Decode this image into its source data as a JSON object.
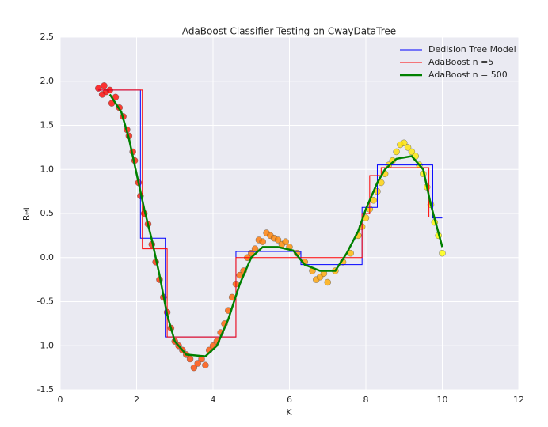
{
  "chart_data": {
    "type": "line",
    "title": "AdaBoost Classifier Testing on CwayDataTree",
    "x_label": "K",
    "y_label": "Ret",
    "xlim": [
      0,
      12
    ],
    "xticks": [
      0,
      2,
      4,
      6,
      8,
      10,
      12
    ],
    "ylim": [
      -1.5,
      2.5
    ],
    "yticks": [
      -1.5,
      {
        "value": -1,
        "label": "-1.0"
      },
      -0.5,
      {
        "value": 0,
        "label": "0.0"
      },
      0.5,
      {
        "value": 1,
        "label": "1.0"
      },
      1.5,
      {
        "value": 2,
        "label": "2.0"
      },
      2.5
    ],
    "grid": true,
    "legend": "upper right",
    "series": [
      {
        "type": "scatter",
        "colormap": "autumn",
        "x": [
          1.0,
          1.1,
          1.15,
          1.2,
          1.3,
          1.35,
          1.45,
          1.55,
          1.65,
          1.75,
          1.8,
          1.9,
          1.95,
          2.05,
          2.1,
          2.2,
          2.3,
          2.4,
          2.5,
          2.6,
          2.7,
          2.8,
          2.9,
          3.0,
          3.1,
          3.2,
          3.3,
          3.4,
          3.5,
          3.6,
          3.7,
          3.8,
          3.9,
          4.0,
          4.1,
          4.2,
          4.3,
          4.4,
          4.5,
          4.6,
          4.7,
          4.8,
          4.9,
          5.0,
          5.1,
          5.2,
          5.3,
          5.4,
          5.5,
          5.6,
          5.7,
          5.8,
          5.9,
          6.0,
          6.2,
          6.4,
          6.6,
          6.7,
          6.8,
          6.9,
          7.0,
          7.2,
          7.4,
          7.6,
          7.8,
          7.9,
          8.0,
          8.1,
          8.2,
          8.3,
          8.4,
          8.5,
          8.6,
          8.7,
          8.8,
          8.9,
          9.0,
          9.1,
          9.2,
          9.3,
          9.4,
          9.5,
          9.6,
          9.7,
          9.8,
          9.9,
          10.0
        ],
        "values": [
          1.92,
          1.85,
          1.95,
          1.88,
          1.9,
          1.75,
          1.82,
          1.7,
          1.6,
          1.45,
          1.38,
          1.2,
          1.1,
          0.85,
          0.7,
          0.5,
          0.38,
          0.15,
          -0.05,
          -0.25,
          -0.45,
          -0.62,
          -0.8,
          -0.95,
          -1.0,
          -1.05,
          -1.1,
          -1.15,
          -1.25,
          -1.2,
          -1.15,
          -1.22,
          -1.05,
          -1.0,
          -0.95,
          -0.85,
          -0.75,
          -0.6,
          -0.45,
          -0.3,
          -0.2,
          -0.15,
          0.0,
          0.05,
          0.1,
          0.2,
          0.18,
          0.28,
          0.25,
          0.22,
          0.2,
          0.15,
          0.18,
          0.12,
          0.05,
          -0.05,
          -0.15,
          -0.25,
          -0.22,
          -0.18,
          -0.28,
          -0.15,
          -0.05,
          0.05,
          0.25,
          0.35,
          0.45,
          0.55,
          0.65,
          0.75,
          0.85,
          0.95,
          1.05,
          1.1,
          1.2,
          1.28,
          1.3,
          1.25,
          1.2,
          1.15,
          1.05,
          0.95,
          0.8,
          0.6,
          0.4,
          0.25,
          0.05
        ]
      },
      {
        "type": "line",
        "name": " Dedision Tree Model",
        "color": "#0000ff",
        "width": 1,
        "x": [
          1.0,
          2.1,
          2.1,
          2.75,
          2.75,
          4.6,
          4.6,
          6.3,
          6.3,
          7.9,
          7.9,
          8.3,
          8.3,
          9.75,
          9.75,
          10.0
        ],
        "values": [
          1.9,
          1.9,
          0.22,
          0.22,
          -0.9,
          -0.9,
          0.07,
          0.07,
          -0.08,
          -0.08,
          0.57,
          0.57,
          1.05,
          1.05,
          0.45,
          0.45
        ]
      },
      {
        "type": "line",
        "name": "AdaBoost n =5",
        "color": "#ff0000",
        "width": 1,
        "x": [
          1.0,
          2.15,
          2.15,
          2.8,
          2.8,
          4.6,
          4.6,
          7.9,
          7.9,
          8.1,
          8.1,
          8.4,
          8.4,
          9.65,
          9.65,
          10.0
        ],
        "values": [
          1.9,
          1.9,
          0.1,
          0.1,
          -0.9,
          -0.9,
          0,
          0,
          0.5,
          0.5,
          0.93,
          0.93,
          1.02,
          1.02,
          0.46,
          0.46
        ]
      },
      {
        "type": "line",
        "name": "AdaBoost n = 500",
        "color": "#008000",
        "width": 2.5,
        "x": [
          1.3,
          1.6,
          1.8,
          2.0,
          2.2,
          2.4,
          2.6,
          2.8,
          3.0,
          3.3,
          3.8,
          4.1,
          4.4,
          4.7,
          5.0,
          5.3,
          5.7,
          6.1,
          6.4,
          6.8,
          7.2,
          7.5,
          7.8,
          8.0,
          8.3,
          8.5,
          8.8,
          9.2,
          9.5,
          9.7,
          10.0
        ],
        "values": [
          1.85,
          1.65,
          1.35,
          0.95,
          0.55,
          0.2,
          -0.2,
          -0.65,
          -0.95,
          -1.1,
          -1.12,
          -1.0,
          -0.7,
          -0.3,
          0.0,
          0.12,
          0.12,
          0.08,
          -0.08,
          -0.15,
          -0.15,
          0.05,
          0.3,
          0.55,
          0.85,
          1.0,
          1.12,
          1.15,
          1.0,
          0.6,
          0.12
        ]
      }
    ]
  }
}
